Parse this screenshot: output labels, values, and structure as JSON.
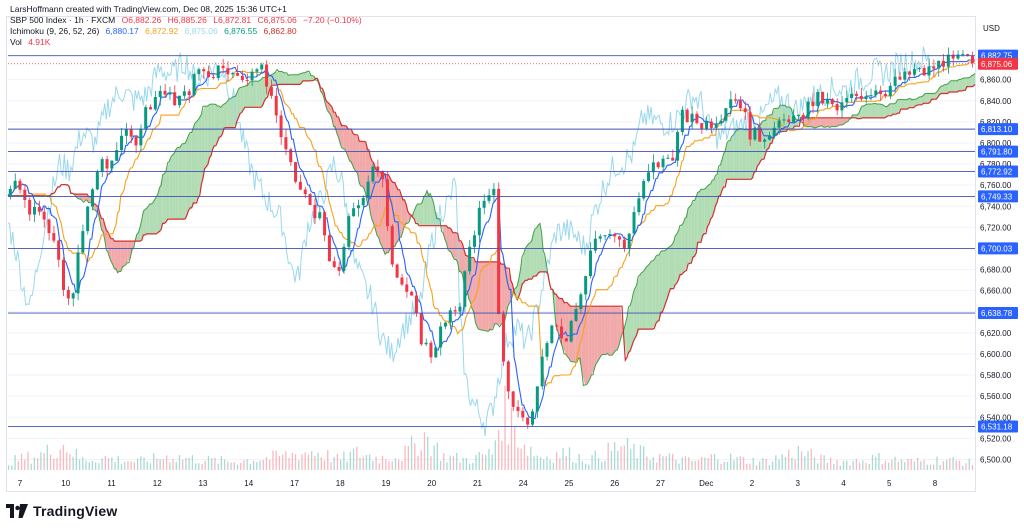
{
  "author_line": "LarsHoffmann created with TradingView.com, Dec 08, 2025 15:36 UTC+1",
  "symbol_line": {
    "symbol": "SBP 500 Index · 1h · FXCM",
    "open": "O6,882.26",
    "high": "H6,885.26",
    "low": "L6,872.81",
    "close": "C6,875.06",
    "change": "−7.20 (−0.10%)"
  },
  "ichimoku_line": {
    "name": "Ichimoku (9, 26, 52, 26)",
    "v1": "6,880.17",
    "v2": "6,872.92",
    "v3": "6,875.06",
    "v4": "6,876.55",
    "v5": "6,862.80"
  },
  "vol_line": {
    "name": "Vol",
    "value": "4.91K"
  },
  "currency": "USD",
  "brand": "TradingView",
  "colors": {
    "up": "#089981",
    "down": "#f23645",
    "tenkan": "#2962ff",
    "kijun": "#f7a21b",
    "chikou": "#9ad8ec",
    "span_a": "#43a047",
    "span_b": "#d32f2f",
    "cloud_up": "#a5d6a7",
    "cloud_down": "#ef9a9a",
    "level_line": "#3f51b5",
    "price_tag": "#2962ff",
    "last_tag": "#f23645"
  },
  "chart_data": {
    "type": "candlestick",
    "timeframe": "1h",
    "y_axis": {
      "range": [
        6490,
        6890
      ],
      "ticks": [
        "6,860.00",
        "6,840.00",
        "6,820.00",
        "6,800.00",
        "6,780.00",
        "6,760.00",
        "6,740.00",
        "6,720.00",
        "6,700.00",
        "6,680.00",
        "6,660.00",
        "6,640.00",
        "6,620.00",
        "6,600.00",
        "6,580.00",
        "6,560.00",
        "6,540.00",
        "6,520.00",
        "6,500.00"
      ]
    },
    "x_axis": {
      "ticks": [
        "7",
        "10",
        "11",
        "12",
        "13",
        "14",
        "17",
        "18",
        "19",
        "20",
        "21",
        "24",
        "25",
        "26",
        "27",
        "Dec",
        "2",
        "3",
        "4",
        "5",
        "8"
      ]
    },
    "levels": [
      6882.75,
      6813.1,
      6791.8,
      6772.92,
      6749.33,
      6700.03,
      6638.78,
      6531.18
    ],
    "level_labels": [
      "6,882.75",
      "6,813.10",
      "6,791.80",
      "6,772.92",
      "6,749.33",
      "6,700.03",
      "6,638.78",
      "6,531.18"
    ],
    "last_price": 6875.06,
    "last_price_label": "6,875.06",
    "price_path": [
      [
        0,
        6750
      ],
      [
        6,
        6770
      ],
      [
        14,
        6735
      ],
      [
        22,
        6742
      ],
      [
        30,
        6705
      ],
      [
        36,
        6660
      ],
      [
        40,
        6645
      ],
      [
        46,
        6700
      ],
      [
        52,
        6745
      ],
      [
        58,
        6780
      ],
      [
        64,
        6775
      ],
      [
        72,
        6810
      ],
      [
        80,
        6800
      ],
      [
        88,
        6835
      ],
      [
        96,
        6850
      ],
      [
        104,
        6840
      ],
      [
        112,
        6845
      ],
      [
        120,
        6870
      ],
      [
        128,
        6865
      ],
      [
        136,
        6878
      ],
      [
        142,
        6860
      ],
      [
        148,
        6862
      ],
      [
        154,
        6872
      ],
      [
        160,
        6868
      ],
      [
        166,
        6840
      ],
      [
        172,
        6800
      ],
      [
        178,
        6770
      ],
      [
        184,
        6752
      ],
      [
        190,
        6740
      ],
      [
        196,
        6725
      ],
      [
        202,
        6680
      ],
      [
        206,
        6672
      ],
      [
        212,
        6722
      ],
      [
        220,
        6745
      ],
      [
        228,
        6780
      ],
      [
        234,
        6760
      ],
      [
        240,
        6690
      ],
      [
        246,
        6668
      ],
      [
        252,
        6650
      ],
      [
        258,
        6615
      ],
      [
        264,
        6600
      ],
      [
        270,
        6622
      ],
      [
        276,
        6635
      ],
      [
        282,
        6650
      ],
      [
        288,
        6700
      ],
      [
        294,
        6735
      ],
      [
        300,
        6745
      ],
      [
        304,
        6765
      ],
      [
        306,
        6640
      ],
      [
        310,
        6575
      ],
      [
        314,
        6555
      ],
      [
        318,
        6545
      ],
      [
        322,
        6535
      ],
      [
        326,
        6545
      ],
      [
        330,
        6575
      ],
      [
        336,
        6615
      ],
      [
        342,
        6625
      ],
      [
        348,
        6610
      ],
      [
        354,
        6640
      ],
      [
        360,
        6680
      ],
      [
        366,
        6715
      ],
      [
        372,
        6718
      ],
      [
        378,
        6712
      ],
      [
        384,
        6700
      ],
      [
        390,
        6735
      ],
      [
        396,
        6760
      ],
      [
        402,
        6778
      ],
      [
        408,
        6782
      ],
      [
        414,
        6790
      ],
      [
        420,
        6825
      ],
      [
        426,
        6822
      ],
      [
        432,
        6818
      ],
      [
        438,
        6820
      ],
      [
        444,
        6828
      ],
      [
        450,
        6845
      ],
      [
        456,
        6838
      ],
      [
        462,
        6810
      ],
      [
        468,
        6805
      ],
      [
        474,
        6812
      ],
      [
        480,
        6815
      ],
      [
        486,
        6825
      ],
      [
        492,
        6820
      ],
      [
        498,
        6835
      ],
      [
        504,
        6842
      ],
      [
        510,
        6838
      ],
      [
        516,
        6830
      ],
      [
        522,
        6840
      ],
      [
        528,
        6845
      ],
      [
        534,
        6848
      ],
      [
        540,
        6852
      ],
      [
        546,
        6850
      ],
      [
        552,
        6858
      ],
      [
        558,
        6862
      ],
      [
        564,
        6868
      ],
      [
        570,
        6866
      ],
      [
        576,
        6872
      ],
      [
        582,
        6878
      ],
      [
        588,
        6876
      ],
      [
        594,
        6880
      ],
      [
        600,
        6876
      ]
    ],
    "volume_profile": [
      [
        0,
        10
      ],
      [
        20,
        18
      ],
      [
        35,
        30
      ],
      [
        45,
        12
      ],
      [
        60,
        14
      ],
      [
        80,
        10
      ],
      [
        100,
        16
      ],
      [
        120,
        12
      ],
      [
        140,
        10
      ],
      [
        160,
        14
      ],
      [
        175,
        18
      ],
      [
        190,
        22
      ],
      [
        205,
        12
      ],
      [
        215,
        20
      ],
      [
        230,
        14
      ],
      [
        245,
        18
      ],
      [
        258,
        40
      ],
      [
        270,
        16
      ],
      [
        285,
        12
      ],
      [
        300,
        20
      ],
      [
        306,
        70
      ],
      [
        312,
        55
      ],
      [
        320,
        30
      ],
      [
        330,
        15
      ],
      [
        345,
        20
      ],
      [
        360,
        12
      ],
      [
        380,
        28
      ],
      [
        395,
        18
      ],
      [
        410,
        14
      ],
      [
        425,
        10
      ],
      [
        440,
        16
      ],
      [
        455,
        12
      ],
      [
        470,
        10
      ],
      [
        490,
        22
      ],
      [
        505,
        12
      ],
      [
        520,
        10
      ],
      [
        540,
        14
      ],
      [
        560,
        10
      ],
      [
        580,
        12
      ],
      [
        600,
        8
      ]
    ]
  }
}
